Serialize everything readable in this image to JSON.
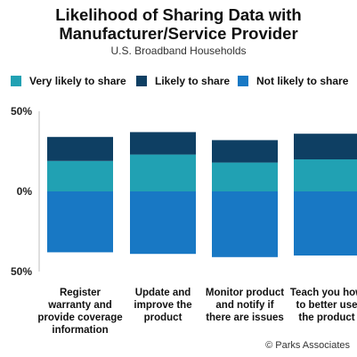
{
  "chart_data": {
    "type": "bar",
    "stacked": true,
    "title_line1": "Likelihood of Sharing Data with",
    "title_line2": "Manufacturer/Service Provider",
    "subtitle": "U.S. Broadband Households",
    "categories": [
      [
        "Register",
        "warranty and",
        "provide coverage",
        "information"
      ],
      [
        "Update and",
        "improve the",
        "product"
      ],
      [
        "Monitor product",
        "and notify if",
        "there are issues"
      ],
      [
        "Teach you how",
        "to better use",
        "the product"
      ]
    ],
    "series": [
      {
        "name": "Very likely to share",
        "color": "#21A1B3",
        "values": [
          19,
          23,
          18,
          20
        ]
      },
      {
        "name": "Likely to share",
        "color": "#0E3F63",
        "values": [
          15,
          14,
          14,
          16
        ]
      },
      {
        "name": "Not likely to share",
        "color": "#1878C4",
        "values": [
          -38,
          -39,
          -41,
          -40
        ]
      }
    ],
    "yticks": [
      "50%",
      "0%",
      "50%"
    ],
    "ylim": [
      -50,
      50
    ],
    "grid": false,
    "legend_position": "top",
    "source": "© Parks Associates"
  }
}
